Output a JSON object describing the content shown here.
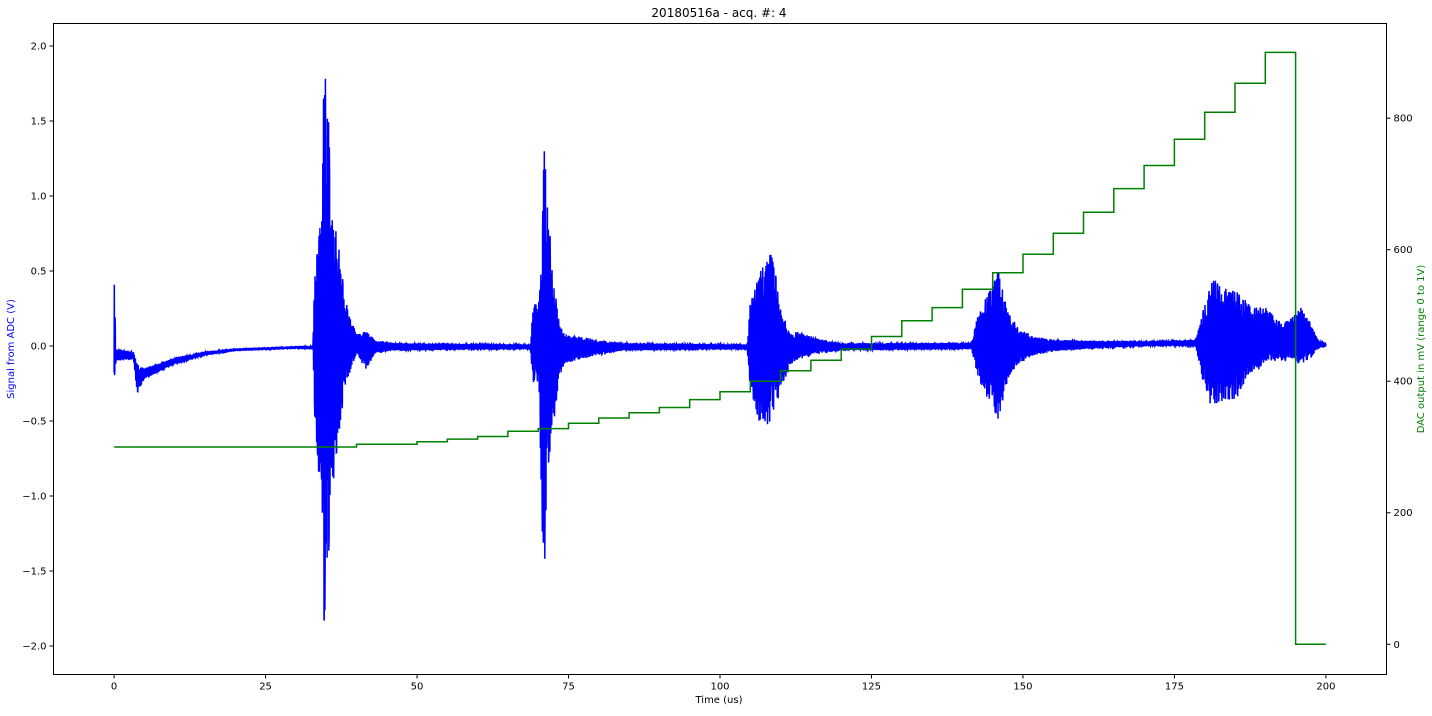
{
  "chart_data": {
    "type": "line",
    "title": "20180516a - acq. #: 4",
    "xlabel": "Time (us)",
    "ylabel_left": "Signal from ADC (V)",
    "ylabel_right": "DAC output in mV (range 0 to 1V)",
    "xlim": [
      -10,
      210
    ],
    "ylim_left": [
      -2.19,
      2.15
    ],
    "ylim_right": [
      -46,
      944
    ],
    "grid": false,
    "x_ticks": [
      0,
      25,
      50,
      75,
      100,
      125,
      150,
      175,
      200
    ],
    "x_tick_labels": [
      "0",
      "25",
      "50",
      "75",
      "100",
      "125",
      "150",
      "175",
      "200"
    ],
    "y_left_ticks": [
      2.0,
      1.5,
      1.0,
      0.5,
      0.0,
      -0.5,
      -1.0,
      -1.5,
      -2.0
    ],
    "y_left_tick_labels": [
      "2.0",
      "1.5",
      "1.0",
      "0.5",
      "0.0",
      "−0.5",
      "−1.0",
      "−1.5",
      "−2.0"
    ],
    "y_right_ticks": [
      0,
      200,
      400,
      600,
      800
    ],
    "y_right_tick_labels": [
      "0",
      "200",
      "400",
      "600",
      "800"
    ],
    "colors": {
      "signal": "#0000ff",
      "dac": "#008000"
    },
    "series": [
      {
        "axis": "left",
        "kind": "signal envelope [time_us, min_V, max_V]",
        "envelope": [
          [
            0,
            -0.37,
            0.49
          ],
          [
            0.3,
            -0.1,
            -0.02
          ],
          [
            3.2,
            -0.09,
            -0.04
          ],
          [
            3.8,
            -0.32,
            -0.12
          ],
          [
            5,
            -0.22,
            -0.15
          ],
          [
            10,
            -0.12,
            -0.08
          ],
          [
            15,
            -0.06,
            -0.04
          ],
          [
            20,
            -0.03,
            -0.02
          ],
          [
            30,
            -0.015,
            -0.005
          ],
          [
            32.8,
            -0.02,
            0.0
          ],
          [
            33.2,
            -0.6,
            0.6
          ],
          [
            34.2,
            -1.05,
            0.97
          ],
          [
            34.6,
            -1.99,
            1.94
          ],
          [
            35.2,
            -1.73,
            1.77
          ],
          [
            35.8,
            -1.0,
            1.0
          ],
          [
            36.6,
            -0.8,
            0.82
          ],
          [
            37.3,
            -0.54,
            0.61
          ],
          [
            38.0,
            -0.3,
            0.35
          ],
          [
            38.9,
            -0.18,
            0.2
          ],
          [
            40,
            -0.06,
            0.08
          ],
          [
            41.7,
            -0.16,
            0.1
          ],
          [
            43,
            -0.05,
            0.04
          ],
          [
            46,
            -0.03,
            0.02
          ],
          [
            68.7,
            -0.02,
            0.01
          ],
          [
            69.2,
            -0.25,
            0.28
          ],
          [
            70.1,
            -0.27,
            0.3
          ],
          [
            70.6,
            -1.21,
            0.75
          ],
          [
            71.0,
            -1.57,
            1.45
          ],
          [
            71.5,
            -0.86,
            1.01
          ],
          [
            72.4,
            -0.62,
            0.5
          ],
          [
            72.9,
            -0.43,
            0.35
          ],
          [
            73.5,
            -0.2,
            0.14
          ],
          [
            74.5,
            -0.12,
            0.07
          ],
          [
            76,
            -0.1,
            0.07
          ],
          [
            80,
            -0.06,
            0.04
          ],
          [
            84,
            -0.03,
            0.02
          ],
          [
            104.5,
            -0.02,
            0.01
          ],
          [
            105,
            -0.3,
            0.3
          ],
          [
            107.0,
            -0.58,
            0.55
          ],
          [
            108.7,
            -0.48,
            0.64
          ],
          [
            110,
            -0.3,
            0.25
          ],
          [
            111.7,
            -0.12,
            0.08
          ],
          [
            113,
            -0.09,
            0.1
          ],
          [
            116,
            -0.05,
            0.05
          ],
          [
            120,
            -0.03,
            0.02
          ],
          [
            141.5,
            -0.02,
            0.02
          ],
          [
            142.5,
            -0.2,
            0.2
          ],
          [
            143.5,
            -0.3,
            0.3
          ],
          [
            145.9,
            -0.49,
            0.51
          ],
          [
            147.5,
            -0.25,
            0.25
          ],
          [
            149.2,
            -0.12,
            0.12
          ],
          [
            152,
            -0.06,
            0.06
          ],
          [
            156,
            -0.03,
            0.04
          ],
          [
            170,
            -0.0,
            0.03
          ],
          [
            178.5,
            0.0,
            0.04
          ],
          [
            179.5,
            -0.2,
            0.2
          ],
          [
            181,
            -0.4,
            0.43
          ],
          [
            182.2,
            -0.38,
            0.45
          ],
          [
            185.3,
            -0.35,
            0.37
          ],
          [
            187.8,
            -0.2,
            0.26
          ],
          [
            190,
            -0.12,
            0.26
          ],
          [
            193,
            -0.1,
            0.15
          ],
          [
            195.9,
            -0.12,
            0.26
          ],
          [
            197.5,
            -0.08,
            0.15
          ],
          [
            198.7,
            -0.02,
            0.04
          ],
          [
            200,
            0.0,
            0.02
          ]
        ]
      },
      {
        "axis": "right",
        "kind": "step [start_us, mV]",
        "steps": [
          [
            0,
            300
          ],
          [
            40,
            304
          ],
          [
            50,
            308
          ],
          [
            55,
            312
          ],
          [
            60,
            316
          ],
          [
            65,
            324
          ],
          [
            70,
            328
          ],
          [
            75,
            336
          ],
          [
            80,
            344
          ],
          [
            85,
            352
          ],
          [
            90,
            360
          ],
          [
            95,
            372
          ],
          [
            100,
            384
          ],
          [
            105,
            400
          ],
          [
            110,
            416
          ],
          [
            115,
            432
          ],
          [
            120,
            449
          ],
          [
            125,
            468
          ],
          [
            130,
            492
          ],
          [
            135,
            512
          ],
          [
            140,
            540
          ],
          [
            145,
            565
          ],
          [
            150,
            593
          ],
          [
            155,
            625
          ],
          [
            160,
            657
          ],
          [
            165,
            693
          ],
          [
            170,
            728
          ],
          [
            175,
            768
          ],
          [
            180,
            809
          ],
          [
            185,
            853
          ],
          [
            190,
            900
          ],
          [
            195,
            0
          ]
        ],
        "x_end": 200
      }
    ]
  }
}
